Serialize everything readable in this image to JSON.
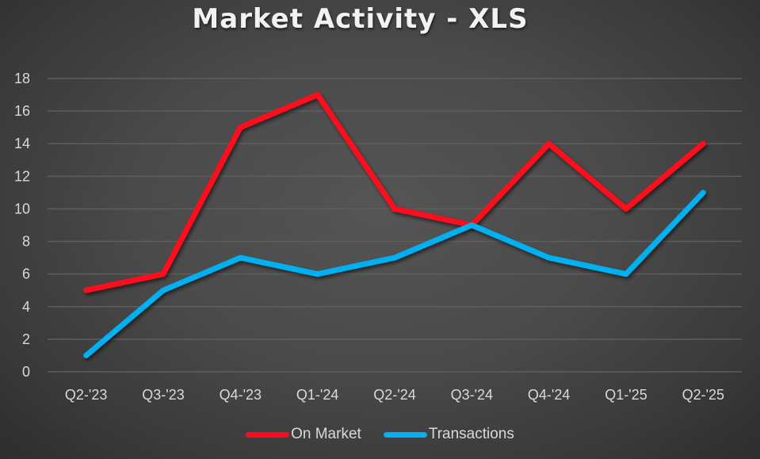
{
  "chart_data": {
    "type": "line",
    "title": "Market Activity - XLS",
    "xlabel": "",
    "ylabel": "",
    "categories": [
      "Q2-'23",
      "Q3-'23",
      "Q4-'23",
      "Q1-'24",
      "Q2-'24",
      "Q3-'24",
      "Q4-'24",
      "Q1-'25",
      "Q2-'25"
    ],
    "series": [
      {
        "name": "On Market",
        "color": "#ff0a1e",
        "values": [
          5,
          6,
          15,
          17,
          10,
          9,
          14,
          10,
          14
        ]
      },
      {
        "name": "Transactions",
        "color": "#00b0f0",
        "values": [
          1,
          5,
          7,
          6,
          7,
          9,
          7,
          6,
          11
        ]
      }
    ],
    "ylim": [
      0,
      18
    ],
    "yticks": [
      0,
      2,
      4,
      6,
      8,
      10,
      12,
      14,
      16,
      18
    ],
    "grid": true,
    "legend_position": "bottom"
  },
  "legend": {
    "items": [
      {
        "label": "On Market",
        "color": "#ff0a1e"
      },
      {
        "label": "Transactions",
        "color": "#00b0f0"
      }
    ]
  }
}
